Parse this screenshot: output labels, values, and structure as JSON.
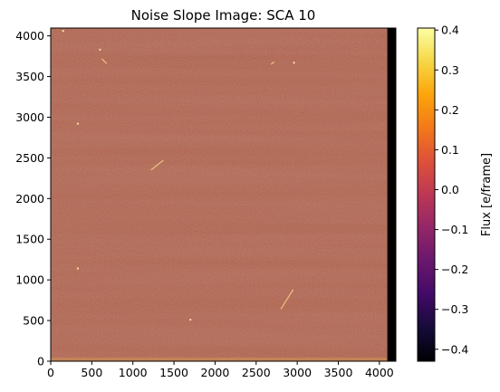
{
  "chart_data": {
    "type": "heatmap",
    "title": "Noise Slope Image: SCA 10",
    "xlabel": "",
    "ylabel": "",
    "xlim": [
      0,
      4200
    ],
    "ylim": [
      0,
      4096
    ],
    "image_extent_x": [
      0,
      4096
    ],
    "xticks": [
      0,
      500,
      1000,
      1500,
      2000,
      2500,
      3000,
      3500,
      4000
    ],
    "yticks": [
      0,
      500,
      1000,
      1500,
      2000,
      2500,
      3000,
      3500,
      4000
    ],
    "colormap": "inferno",
    "typical_value": 0.0,
    "colorbar": {
      "label": "Flux [e/frame]",
      "vmin": -0.43,
      "vmax": 0.405,
      "ticks": [
        -0.4,
        -0.3,
        -0.2,
        -0.1,
        0.0,
        0.1,
        0.2,
        0.3,
        0.4
      ],
      "tick_labels": [
        "−0.4",
        "−0.3",
        "−0.2",
        "−0.1",
        "0.0",
        "0.1",
        "0.2",
        "0.3",
        "0.4"
      ]
    }
  }
}
